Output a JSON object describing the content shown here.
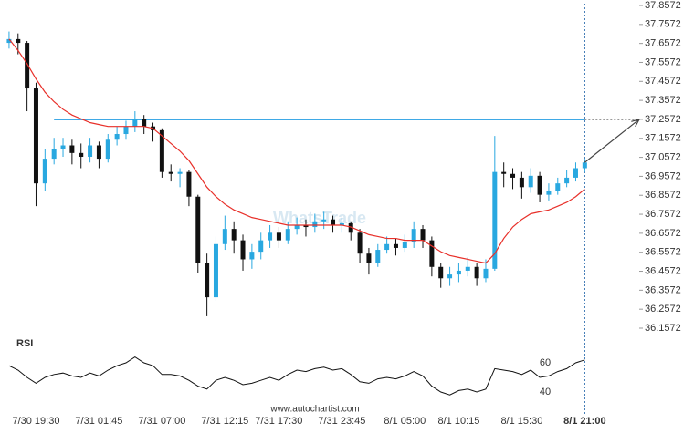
{
  "chart_data": [
    {
      "type": "candlestick",
      "watermark": "WhatsTrade",
      "categories": [
        null,
        null,
        null,
        "7/30 19:30",
        null,
        null,
        null,
        null,
        null,
        null,
        "7/31 01:45",
        null,
        null,
        null,
        null,
        null,
        null,
        "7/31 07:00",
        null,
        null,
        null,
        null,
        null,
        null,
        "7/31 12:15",
        null,
        null,
        null,
        null,
        null,
        "7/31 17:30",
        null,
        null,
        null,
        null,
        null,
        null,
        "7/31 23:45",
        null,
        null,
        null,
        null,
        null,
        null,
        "8/1 05:00",
        null,
        null,
        null,
        null,
        null,
        "8/1 10:15",
        null,
        null,
        null,
        null,
        null,
        null,
        "8/1 15:30",
        null,
        null,
        null,
        null,
        null,
        null,
        "8/1 21:00"
      ],
      "open": [
        37.66,
        37.68,
        37.66,
        37.42,
        36.92,
        37.05,
        37.1,
        37.12,
        37.08,
        37.06,
        37.12,
        37.05,
        37.15,
        37.18,
        37.22,
        37.26,
        37.22,
        37.2,
        36.98,
        36.97,
        36.98,
        36.85,
        36.5,
        36.32,
        36.6,
        36.68,
        36.62,
        36.52,
        36.56,
        36.62,
        36.66,
        36.62,
        36.68,
        36.7,
        36.69,
        36.72,
        36.73,
        36.7,
        36.71,
        36.66,
        36.55,
        36.5,
        36.57,
        36.6,
        36.58,
        36.61,
        36.68,
        36.62,
        36.48,
        36.42,
        36.44,
        36.46,
        36.48,
        36.42,
        36.47,
        36.98,
        36.97,
        36.95,
        36.9,
        36.96,
        36.86,
        36.88,
        36.92,
        36.95,
        37.0
      ],
      "high": [
        37.72,
        37.71,
        37.67,
        37.45,
        37.1,
        37.16,
        37.16,
        37.15,
        37.13,
        37.16,
        37.14,
        37.18,
        37.22,
        37.25,
        37.3,
        37.28,
        37.24,
        37.21,
        37.02,
        37.0,
        36.99,
        36.86,
        36.55,
        36.64,
        36.75,
        36.72,
        36.65,
        36.6,
        36.66,
        36.7,
        36.69,
        36.72,
        36.74,
        36.73,
        36.76,
        36.77,
        36.75,
        36.74,
        36.72,
        36.68,
        36.58,
        36.6,
        36.64,
        36.63,
        36.65,
        36.72,
        36.7,
        36.64,
        36.5,
        36.48,
        36.5,
        36.53,
        36.5,
        36.52,
        37.17,
        37.03,
        37.0,
        36.98,
        37.0,
        36.98,
        36.92,
        36.95,
        36.99,
        37.03,
        37.05
      ],
      "low": [
        37.63,
        37.6,
        37.3,
        36.8,
        36.88,
        37.02,
        37.06,
        37.02,
        37.0,
        37.03,
        37.0,
        37.03,
        37.12,
        37.15,
        37.19,
        37.18,
        37.14,
        36.95,
        36.93,
        36.9,
        36.8,
        36.45,
        36.22,
        36.3,
        36.57,
        36.55,
        36.46,
        36.47,
        36.52,
        36.58,
        36.58,
        36.6,
        36.65,
        36.64,
        36.66,
        36.68,
        36.66,
        36.66,
        36.62,
        36.5,
        36.44,
        36.48,
        36.55,
        36.54,
        36.56,
        36.58,
        36.58,
        36.43,
        36.37,
        36.38,
        36.4,
        36.43,
        36.38,
        36.4,
        36.46,
        36.9,
        36.89,
        36.84,
        36.87,
        36.82,
        36.83,
        36.86,
        36.9,
        36.93,
        36.98
      ],
      "close": [
        37.68,
        37.66,
        37.42,
        36.92,
        37.05,
        37.1,
        37.12,
        37.08,
        37.06,
        37.12,
        37.05,
        37.15,
        37.18,
        37.22,
        37.26,
        37.22,
        37.2,
        36.98,
        36.97,
        36.98,
        36.85,
        36.5,
        36.32,
        36.6,
        36.68,
        36.62,
        36.52,
        36.56,
        36.62,
        36.66,
        36.62,
        36.68,
        36.7,
        36.69,
        36.72,
        36.73,
        36.7,
        36.71,
        36.66,
        36.55,
        36.5,
        36.57,
        36.6,
        36.58,
        36.61,
        36.68,
        36.62,
        36.48,
        36.42,
        36.44,
        36.46,
        36.48,
        36.42,
        36.47,
        36.98,
        36.97,
        36.95,
        36.9,
        36.96,
        36.86,
        36.88,
        36.92,
        36.95,
        37.0,
        37.03
      ],
      "up_color": "#29a8e0",
      "down_color": "#111111",
      "moving_average": {
        "color": "#e8302a",
        "values": [
          37.68,
          37.62,
          37.55,
          37.47,
          37.4,
          37.35,
          37.31,
          37.28,
          37.26,
          37.24,
          37.23,
          37.22,
          37.22,
          37.22,
          37.22,
          37.22,
          37.21,
          37.17,
          37.13,
          37.09,
          37.04,
          36.97,
          36.9,
          36.85,
          36.81,
          36.78,
          36.76,
          36.74,
          36.73,
          36.72,
          36.71,
          36.7,
          36.7,
          36.7,
          36.7,
          36.7,
          36.7,
          36.7,
          36.69,
          36.67,
          36.65,
          36.64,
          36.63,
          36.63,
          36.62,
          36.62,
          36.62,
          36.59,
          36.56,
          36.54,
          36.53,
          36.52,
          36.51,
          36.5,
          36.55,
          36.63,
          36.69,
          36.73,
          36.76,
          36.77,
          36.78,
          36.8,
          36.82,
          36.85,
          36.89
        ]
      },
      "level": 37.2572,
      "level_color": "#3fa9e6",
      "ylim": [
        36.1572,
        37.8572
      ],
      "yticks": [
        37.8572,
        37.7572,
        37.6572,
        37.5572,
        37.4572,
        37.3572,
        37.2572,
        37.1572,
        37.0572,
        36.9572,
        36.8572,
        36.7572,
        36.6572,
        36.5572,
        36.4572,
        36.3572,
        36.2572,
        36.1572
      ]
    },
    {
      "type": "line",
      "title": "RSI",
      "color": "#111111",
      "values": [
        58,
        55,
        50,
        46,
        50,
        52,
        53,
        51,
        50,
        53,
        51,
        55,
        58,
        60,
        64,
        60,
        58,
        52,
        52,
        51,
        48,
        44,
        42,
        48,
        50,
        48,
        45,
        46,
        48,
        50,
        48,
        52,
        55,
        54,
        56,
        57,
        55,
        56,
        52,
        47,
        46,
        49,
        50,
        49,
        51,
        54,
        51,
        44,
        40,
        38,
        41,
        42,
        40,
        42,
        56,
        55,
        54,
        52,
        55,
        50,
        51,
        54,
        56,
        60,
        62
      ],
      "ylim": [
        30,
        70
      ],
      "yticks": [
        40,
        60
      ]
    }
  ],
  "source": "www.autochartist.com"
}
